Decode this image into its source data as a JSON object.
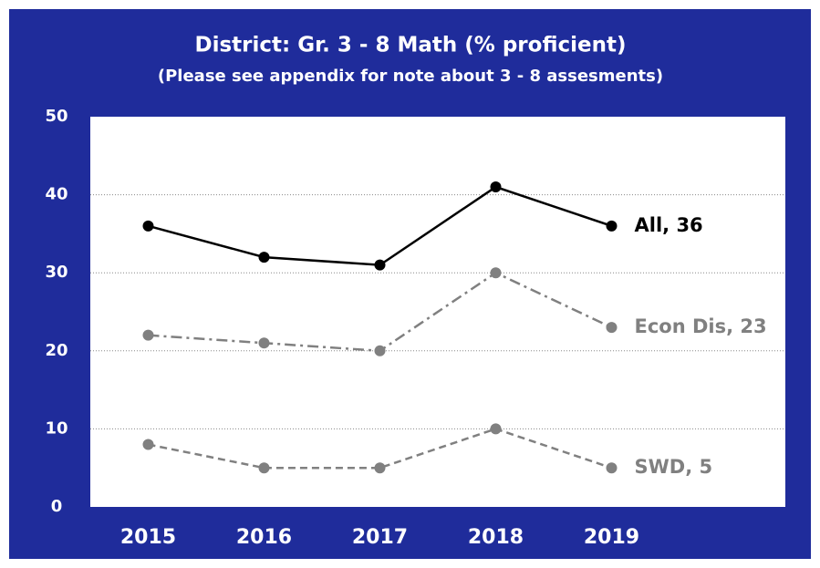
{
  "chart_data": {
    "type": "line",
    "title": "District: Gr. 3 - 8 Math (% proficient)",
    "subtitle": "(Please see appendix for note about 3  - 8 assesments)",
    "categories": [
      "2015",
      "2016",
      "2017",
      "2018",
      "2019",
      null
    ],
    "series": [
      {
        "name": "All",
        "color": "#000000",
        "dash": "solid",
        "values": [
          36,
          32,
          31,
          41,
          36,
          null
        ],
        "value_labels": [
          null,
          null,
          null,
          null,
          "All, 36",
          null
        ]
      },
      {
        "name": "Econ Dis",
        "color": "#808080",
        "dash": "dashdot",
        "values": [
          22,
          21,
          20,
          30,
          23,
          null
        ],
        "value_labels": [
          null,
          null,
          null,
          null,
          "Econ Dis, 23",
          null
        ]
      },
      {
        "name": "SWD",
        "color": "#808080",
        "dash": "dashed",
        "values": [
          8,
          5,
          5,
          10,
          5,
          null
        ],
        "value_labels": [
          null,
          null,
          null,
          null,
          "SWD, 5",
          null
        ]
      }
    ],
    "ylim": [
      0,
      50
    ],
    "yticks": [
      0,
      10,
      20,
      30,
      40,
      50
    ],
    "grid": true
  }
}
